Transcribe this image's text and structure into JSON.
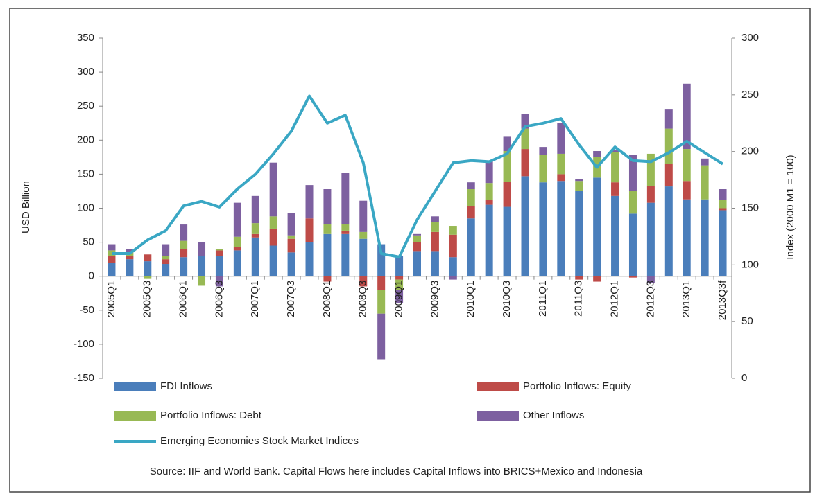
{
  "chart_data": {
    "type": "bar",
    "stacked": true,
    "ylabel": "USD Billion",
    "y2label": "Index (2000 M1 = 100)",
    "source": "Source: IIF and World Bank. Capital Flows here includes Capital Inflows into BRICS+Mexico and Indonesia",
    "categories": [
      "2005Q1",
      null,
      "2005Q3",
      null,
      "2006Q1",
      null,
      "2006Q3",
      null,
      "2007Q1",
      null,
      "2007Q3",
      null,
      "2008Q1",
      null,
      "2008Q3",
      null,
      "2009Q1",
      null,
      "2009Q3",
      null,
      "2010Q1",
      null,
      "2010Q3",
      null,
      "2011Q1",
      null,
      "2011Q3",
      null,
      "2012Q1",
      null,
      "2012Q3",
      null,
      "2013Q1",
      null,
      "2013Q3f"
    ],
    "ylim": [
      -150,
      350
    ],
    "yticks": [
      -150,
      -100,
      -50,
      0,
      50,
      100,
      150,
      200,
      250,
      300,
      350
    ],
    "y2lim": [
      0,
      300
    ],
    "y2ticks": [
      0,
      50,
      100,
      150,
      200,
      250,
      300
    ],
    "series": [
      {
        "name": "FDI Inflows",
        "color": "#4a7ebb",
        "values": [
          20,
          25,
          22,
          18,
          28,
          30,
          30,
          38,
          57,
          45,
          35,
          50,
          62,
          62,
          55,
          47,
          30,
          37,
          37,
          28,
          85,
          105,
          102,
          147,
          138,
          140,
          125,
          145,
          118,
          92,
          108,
          132,
          113,
          113,
          97
        ]
      },
      {
        "name": "Portfolio Inflows: Equity",
        "color": "#be4b48",
        "values": [
          10,
          5,
          10,
          7,
          12,
          0,
          8,
          5,
          5,
          25,
          20,
          35,
          -8,
          5,
          -15,
          -20,
          -5,
          13,
          28,
          33,
          18,
          7,
          37,
          40,
          0,
          10,
          -5,
          -8,
          20,
          -2,
          25,
          33,
          27,
          0,
          3
        ]
      },
      {
        "name": "Portfolio Inflows: Debt",
        "color": "#98b954",
        "values": [
          8,
          5,
          -3,
          5,
          12,
          -14,
          2,
          15,
          16,
          18,
          5,
          0,
          15,
          10,
          10,
          -35,
          -15,
          10,
          15,
          13,
          25,
          25,
          45,
          30,
          40,
          30,
          15,
          30,
          45,
          33,
          47,
          52,
          47,
          50,
          12
        ]
      },
      {
        "name": "Other Inflows",
        "color": "#7d60a0",
        "values": [
          9,
          5,
          0,
          17,
          24,
          20,
          -15,
          50,
          40,
          79,
          33,
          49,
          51,
          75,
          46,
          -67,
          -20,
          2,
          8,
          -5,
          10,
          33,
          21,
          21,
          12,
          45,
          3,
          9,
          2,
          53,
          -10,
          28,
          96,
          10,
          16
        ]
      },
      {
        "name": "Emerging Economies Stock Market Indices",
        "color": "#3aa7c4",
        "type": "line",
        "axis": "y2",
        "values": [
          110,
          110,
          122,
          130,
          152,
          156,
          151,
          167,
          180,
          198,
          218,
          249,
          225,
          232,
          190,
          110,
          107,
          140,
          165,
          190,
          192,
          191,
          198,
          222,
          225,
          229,
          206,
          186,
          204,
          192,
          191,
          199,
          209,
          199,
          189
        ]
      }
    ]
  }
}
